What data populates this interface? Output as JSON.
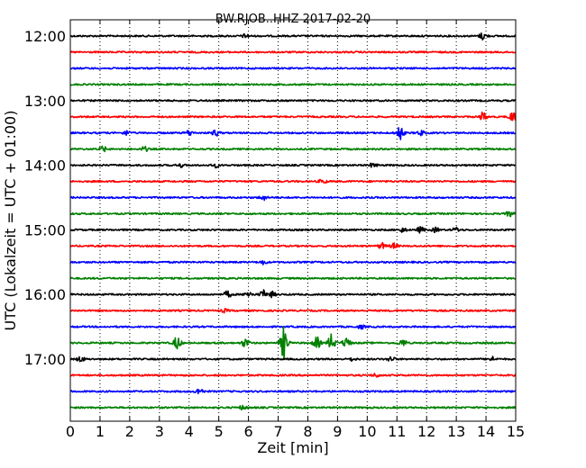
{
  "chart_data": {
    "type": "line",
    "title": "BW.RJOB..HHZ 2017-02-20",
    "xlabel": "Zeit  [min]",
    "ylabel": "UTC (Lokalzeit = UTC + 01:00)",
    "xlim": [
      0,
      15
    ],
    "x_ticks": [
      "0",
      "1",
      "2",
      "3",
      "4",
      "5",
      "6",
      "7",
      "8",
      "9",
      "10",
      "11",
      "12",
      "13",
      "14",
      "15"
    ],
    "y_tick_labels": [
      "12:00",
      "13:00",
      "14:00",
      "15:00",
      "16:00",
      "17:00"
    ],
    "grid": "vertical dotted at each minute",
    "row_start": "12:00",
    "row_interval_min": 15,
    "color_cycle": [
      "#000000",
      "#ff0000",
      "#0000ff",
      "#008000"
    ],
    "traces": [
      {
        "start": "12:00",
        "color": "#000000",
        "events": [
          {
            "t": 5.9,
            "amp": 0.25
          },
          {
            "t": 13.9,
            "amp": 0.5
          }
        ]
      },
      {
        "start": "12:15",
        "color": "#ff0000",
        "events": []
      },
      {
        "start": "12:30",
        "color": "#0000ff",
        "events": []
      },
      {
        "start": "12:45",
        "color": "#008000",
        "events": []
      },
      {
        "start": "13:00",
        "color": "#000000",
        "events": []
      },
      {
        "start": "13:15",
        "color": "#ff0000",
        "events": [
          {
            "t": 13.9,
            "amp": 0.6
          },
          {
            "t": 14.9,
            "amp": 0.7
          }
        ]
      },
      {
        "start": "13:30",
        "color": "#0000ff",
        "events": [
          {
            "t": 1.9,
            "amp": 0.3
          },
          {
            "t": 4.0,
            "amp": 0.35
          },
          {
            "t": 4.9,
            "amp": 0.4
          },
          {
            "t": 11.1,
            "amp": 1.0
          },
          {
            "t": 11.8,
            "amp": 0.35
          }
        ]
      },
      {
        "start": "13:45",
        "color": "#008000",
        "events": [
          {
            "t": 1.1,
            "amp": 0.35
          },
          {
            "t": 2.5,
            "amp": 0.3
          }
        ]
      },
      {
        "start": "14:00",
        "color": "#000000",
        "events": [
          {
            "t": 3.7,
            "amp": 0.25
          },
          {
            "t": 4.9,
            "amp": 0.25
          },
          {
            "t": 10.2,
            "amp": 0.3
          }
        ]
      },
      {
        "start": "14:15",
        "color": "#ff0000",
        "events": [
          {
            "t": 8.5,
            "amp": 0.3
          }
        ]
      },
      {
        "start": "14:30",
        "color": "#0000ff",
        "events": [
          {
            "t": 6.5,
            "amp": 0.35
          }
        ]
      },
      {
        "start": "14:45",
        "color": "#008000",
        "events": [
          {
            "t": 14.8,
            "amp": 0.35
          }
        ]
      },
      {
        "start": "15:00",
        "color": "#000000",
        "events": [
          {
            "t": 11.2,
            "amp": 0.3
          },
          {
            "t": 11.8,
            "amp": 0.4
          },
          {
            "t": 12.3,
            "amp": 0.3
          },
          {
            "t": 13.0,
            "amp": 0.3
          }
        ]
      },
      {
        "start": "15:15",
        "color": "#ff0000",
        "events": [
          {
            "t": 10.5,
            "amp": 0.4
          },
          {
            "t": 10.9,
            "amp": 0.35
          }
        ]
      },
      {
        "start": "15:30",
        "color": "#0000ff",
        "events": [
          {
            "t": 6.5,
            "amp": 0.25
          }
        ]
      },
      {
        "start": "15:45",
        "color": "#008000",
        "events": []
      },
      {
        "start": "16:00",
        "color": "#000000",
        "events": [
          {
            "t": 5.3,
            "amp": 0.45
          },
          {
            "t": 6.0,
            "amp": 0.4
          },
          {
            "t": 6.5,
            "amp": 0.55
          },
          {
            "t": 6.8,
            "amp": 0.35
          }
        ]
      },
      {
        "start": "16:15",
        "color": "#ff0000",
        "events": [
          {
            "t": 5.2,
            "amp": 0.2
          }
        ]
      },
      {
        "start": "16:30",
        "color": "#0000ff",
        "events": [
          {
            "t": 9.8,
            "amp": 0.25
          }
        ]
      },
      {
        "start": "16:45",
        "color": "#008000",
        "events": [
          {
            "t": 3.6,
            "amp": 0.9
          },
          {
            "t": 5.9,
            "amp": 0.6
          },
          {
            "t": 7.2,
            "amp": 2.3
          },
          {
            "t": 8.3,
            "amp": 0.8
          },
          {
            "t": 8.8,
            "amp": 1.2
          },
          {
            "t": 9.3,
            "amp": 0.8
          },
          {
            "t": 11.2,
            "amp": 0.5
          }
        ]
      },
      {
        "start": "17:00",
        "color": "#000000",
        "events": [
          {
            "t": 0.35,
            "amp": 0.35
          },
          {
            "t": 9.5,
            "amp": 0.2
          },
          {
            "t": 10.8,
            "amp": 0.35
          },
          {
            "t": 14.2,
            "amp": 0.3
          }
        ]
      },
      {
        "start": "17:15",
        "color": "#ff0000",
        "events": [
          {
            "t": 10.3,
            "amp": 0.25
          }
        ]
      },
      {
        "start": "17:30",
        "color": "#0000ff",
        "events": [
          {
            "t": 4.35,
            "amp": 0.45
          }
        ]
      },
      {
        "start": "17:45",
        "color": "#008000",
        "events": [
          {
            "t": 5.8,
            "amp": 0.25
          }
        ]
      }
    ]
  }
}
